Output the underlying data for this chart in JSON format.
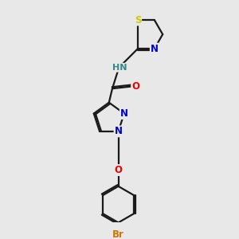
{
  "bg_color": "#e8e8e8",
  "bond_color": "#1a1a1a",
  "bond_width": 1.6,
  "dbo": 0.07,
  "atom_colors": {
    "S": "#cccc00",
    "N": "#0000cc",
    "O": "#ee0000",
    "Br": "#cc7700",
    "HN": "#338888",
    "C": "#1a1a1a"
  },
  "fs": 8.5
}
